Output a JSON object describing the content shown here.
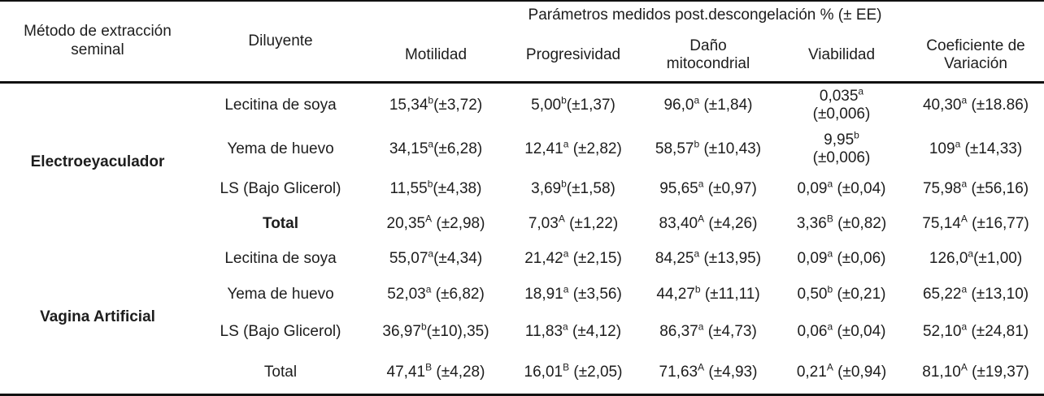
{
  "colors": {
    "background": "#ffffff",
    "text": "#1d1d1d",
    "rule": "#111111"
  },
  "table": {
    "header": {
      "method_col": "Método de extracción\nseminal",
      "diluent_col": "Diluyente",
      "parameters_group": "Parámetros medidos post.descongelación % (± EE)",
      "param_columns": [
        "Motilidad",
        "Progresividad",
        "Daño\nmitocondrial",
        "Viabilidad",
        "Coeficiente de\nVariación"
      ]
    },
    "groups": [
      {
        "method": "Electroeyaculador",
        "rows": [
          {
            "diluyente": "Lecitina de soya",
            "bold": false,
            "cells": [
              {
                "v": "15,34",
                "sup": "b",
                "sep": "",
                "ee": "(±3,72)"
              },
              {
                "v": "5,00",
                "sup": "b",
                "sep": "",
                "ee": "(±1,37)"
              },
              {
                "v": "96,0",
                "sup": "a",
                "sep": " ",
                "ee": "(±1,84)"
              },
              {
                "v": "0,035",
                "sup": "a",
                "sep": "br",
                "ee": "(±0,006)"
              },
              {
                "v": "40,30",
                "sup": "a",
                "sep": " ",
                "ee": "(±18.86)"
              }
            ]
          },
          {
            "diluyente": "Yema de huevo",
            "bold": false,
            "cells": [
              {
                "v": "34,15",
                "sup": "a",
                "sep": "",
                "ee": "(±6,28)"
              },
              {
                "v": "12,41",
                "sup": "a",
                "sep": " ",
                "ee": "(±2,82)"
              },
              {
                "v": "58,57",
                "sup": "b",
                "sep": " ",
                "ee": "(±10,43)"
              },
              {
                "v": "9,95",
                "sup": "b",
                "sep": "br",
                "ee": "(±0,006)"
              },
              {
                "v": "109",
                "sup": "a",
                "sep": " ",
                "ee": "(±14,33)"
              }
            ]
          },
          {
            "diluyente": "LS (Bajo Glicerol)",
            "bold": false,
            "cells": [
              {
                "v": "11,55",
                "sup": "b",
                "sep": "",
                "ee": "(±4,38)"
              },
              {
                "v": "3,69",
                "sup": "b",
                "sep": "",
                "ee": "(±1,58)"
              },
              {
                "v": "95,65",
                "sup": "a",
                "sep": " ",
                "ee": "(±0,97)"
              },
              {
                "v": "0,09",
                "sup": "a",
                "sep": " ",
                "ee": "(±0,04)"
              },
              {
                "v": "75,98",
                "sup": "a",
                "sep": " ",
                "ee": "(±56,16)"
              }
            ]
          },
          {
            "diluyente": "Total",
            "bold": true,
            "cells": [
              {
                "v": "20,35",
                "sup": "A",
                "sep": " ",
                "ee": "(±2,98)"
              },
              {
                "v": "7,03",
                "sup": "A",
                "sep": " ",
                "ee": "(±1,22)"
              },
              {
                "v": "83,40",
                "sup": "A",
                "sep": " ",
                "ee": "(±4,26)"
              },
              {
                "v": "3,36",
                "sup": "B",
                "sep": " ",
                "ee": "(±0,82)"
              },
              {
                "v": "75,14",
                "sup": "A",
                "sep": " ",
                "ee": "(±16,77)"
              }
            ]
          }
        ]
      },
      {
        "method": "Vagina Artificial",
        "rows": [
          {
            "diluyente": "Lecitina de soya",
            "bold": false,
            "cells": [
              {
                "v": "55,07",
                "sup": "a",
                "sep": "",
                "ee": "(±4,34)"
              },
              {
                "v": "21,42",
                "sup": "a",
                "sep": " ",
                "ee": "(±2,15)"
              },
              {
                "v": "84,25",
                "sup": "a",
                "sep": " ",
                "ee": "(±13,95)"
              },
              {
                "v": "0,09",
                "sup": "a",
                "sep": " ",
                "ee": "(±0,06)"
              },
              {
                "v": "126,0",
                "sup": "a",
                "sep": "",
                "ee": "(±1,00)"
              }
            ]
          },
          {
            "diluyente": "Yema de huevo",
            "bold": false,
            "cells": [
              {
                "v": "52,03",
                "sup": "a",
                "sep": " ",
                "ee": "(±6,82)"
              },
              {
                "v": "18,91",
                "sup": "a",
                "sep": " ",
                "ee": "(±3,56)"
              },
              {
                "v": "44,27",
                "sup": "b",
                "sep": " ",
                "ee": "(±11,11)"
              },
              {
                "v": "0,50",
                "sup": "b",
                "sep": " ",
                "ee": "(±0,21)"
              },
              {
                "v": "65,22",
                "sup": "a",
                "sep": " ",
                "ee": "(±13,10)"
              }
            ]
          },
          {
            "diluyente": "LS (Bajo Glicerol)",
            "bold": false,
            "cells": [
              {
                "v": "36,97",
                "sup": "b",
                "sep": "",
                "ee": "(±10),35)"
              },
              {
                "v": "11,83",
                "sup": "a",
                "sep": " ",
                "ee": "(±4,12)"
              },
              {
                "v": "86,37",
                "sup": "a",
                "sep": " ",
                "ee": "(±4,73)"
              },
              {
                "v": "0,06",
                "sup": "a",
                "sep": " ",
                "ee": "(±0,04)"
              },
              {
                "v": "52,10",
                "sup": "a",
                "sep": " ",
                "ee": "(±24,81)"
              }
            ]
          },
          {
            "diluyente": "Total",
            "bold": false,
            "cells": [
              {
                "v": "47,41",
                "sup": "B",
                "sep": " ",
                "ee": "(±4,28)"
              },
              {
                "v": "16,01",
                "sup": "B",
                "sep": " ",
                "ee": "(±2,05)"
              },
              {
                "v": "71,63",
                "sup": "A",
                "sep": " ",
                "ee": "(±4,93)"
              },
              {
                "v": "0,21",
                "sup": "A",
                "sep": " ",
                "ee": "(±0,94)"
              },
              {
                "v": "81,10",
                "sup": "A",
                "sep": " ",
                "ee": "(±19,37)"
              }
            ]
          }
        ]
      }
    ]
  }
}
